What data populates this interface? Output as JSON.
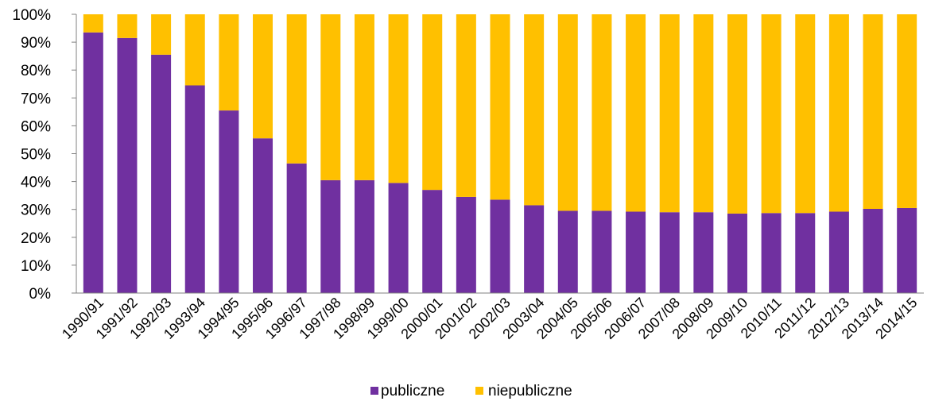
{
  "chart_data": {
    "type": "bar",
    "stacked": true,
    "percent_stacked": true,
    "title": "",
    "xlabel": "",
    "ylabel": "",
    "ylim": [
      0,
      100
    ],
    "yticks": [
      "0%",
      "10%",
      "20%",
      "30%",
      "40%",
      "50%",
      "60%",
      "70%",
      "80%",
      "90%",
      "100%"
    ],
    "grid": false,
    "legend_position": "bottom",
    "categories": [
      "1990/91",
      "1991/92",
      "1992/93",
      "1993/94",
      "1994/95",
      "1995/96",
      "1996/97",
      "1997/98",
      "1998/99",
      "1999/00",
      "2000/01",
      "2001/02",
      "2002/03",
      "2003/04",
      "2004/05",
      "2005/06",
      "2006/07",
      "2007/08",
      "2008/09",
      "2009/10",
      "2010/11",
      "2011/12",
      "2012/13",
      "2013/14",
      "2014/15"
    ],
    "series": [
      {
        "name": "publiczne",
        "color": "#7030A0",
        "values": [
          93.5,
          91.5,
          85.5,
          74.5,
          65.5,
          55.5,
          46.5,
          40.5,
          40.5,
          39.5,
          37,
          34.5,
          33.5,
          31.5,
          29.5,
          29.5,
          29.2,
          29,
          29,
          28.5,
          28.7,
          28.7,
          29.2,
          30.2,
          30.5
        ]
      },
      {
        "name": "niepubliczne",
        "color": "#FFC000",
        "values": [
          6.5,
          8.5,
          14.5,
          25.5,
          34.5,
          44.5,
          53.5,
          59.5,
          59.5,
          60.5,
          63,
          65.5,
          66.5,
          68.5,
          70.5,
          70.5,
          70.8,
          71,
          71,
          71.5,
          71.3,
          71.3,
          70.8,
          69.8,
          69.5
        ]
      }
    ]
  }
}
